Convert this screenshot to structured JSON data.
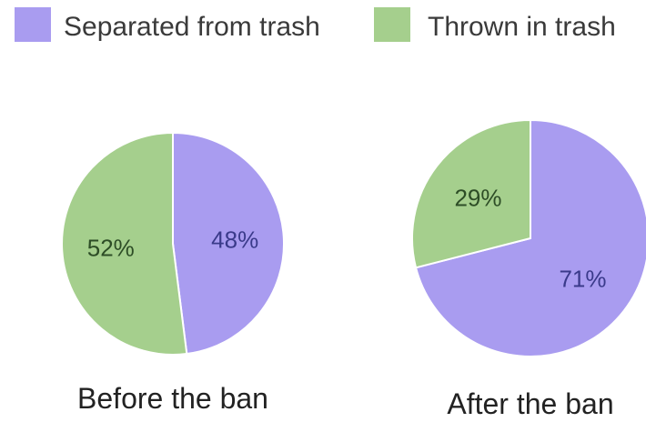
{
  "chart_data": {
    "type": "pie",
    "legend": {
      "placement": "top",
      "entries": [
        {
          "label": "Separated from trash",
          "color": "#a99cf0"
        },
        {
          "label": "Thrown in trash",
          "color": "#a5cf8d"
        }
      ]
    },
    "charts": [
      {
        "title": "Before the ban",
        "slices": [
          {
            "label": "Separated from trash",
            "value": 48,
            "value_label": "48%",
            "color": "#a99cf0"
          },
          {
            "label": "Thrown in trash",
            "value": 52,
            "value_label": "52%",
            "color": "#a5cf8d"
          }
        ]
      },
      {
        "title": "After the ban",
        "slices": [
          {
            "label": "Separated from trash",
            "value": 71,
            "value_label": "71%",
            "color": "#a99cf0"
          },
          {
            "label": "Thrown in trash",
            "value": 29,
            "value_label": "29%",
            "color": "#a5cf8d"
          }
        ]
      }
    ]
  }
}
